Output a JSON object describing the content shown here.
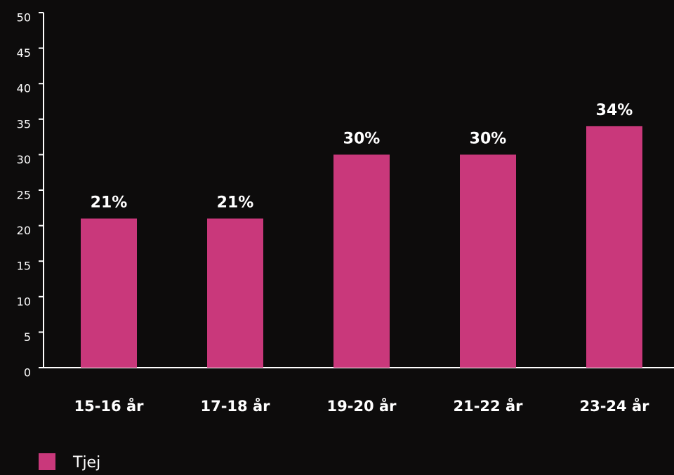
{
  "chart_data": {
    "type": "bar",
    "categories": [
      "15-16 år",
      "17-18 år",
      "19-20 år",
      "21-22 år",
      "23-24 år"
    ],
    "series": [
      {
        "name": "Tjej",
        "color": "#c9387b",
        "values": [
          21,
          21,
          30,
          30,
          34
        ],
        "value_labels": [
          "21%",
          "21%",
          "30%",
          "30%",
          "34%"
        ]
      }
    ],
    "ylim": [
      0,
      50
    ],
    "yticks": [
      0,
      5,
      10,
      15,
      20,
      25,
      30,
      35,
      40,
      45,
      50
    ],
    "grid": false,
    "legend": "bottom-left"
  }
}
